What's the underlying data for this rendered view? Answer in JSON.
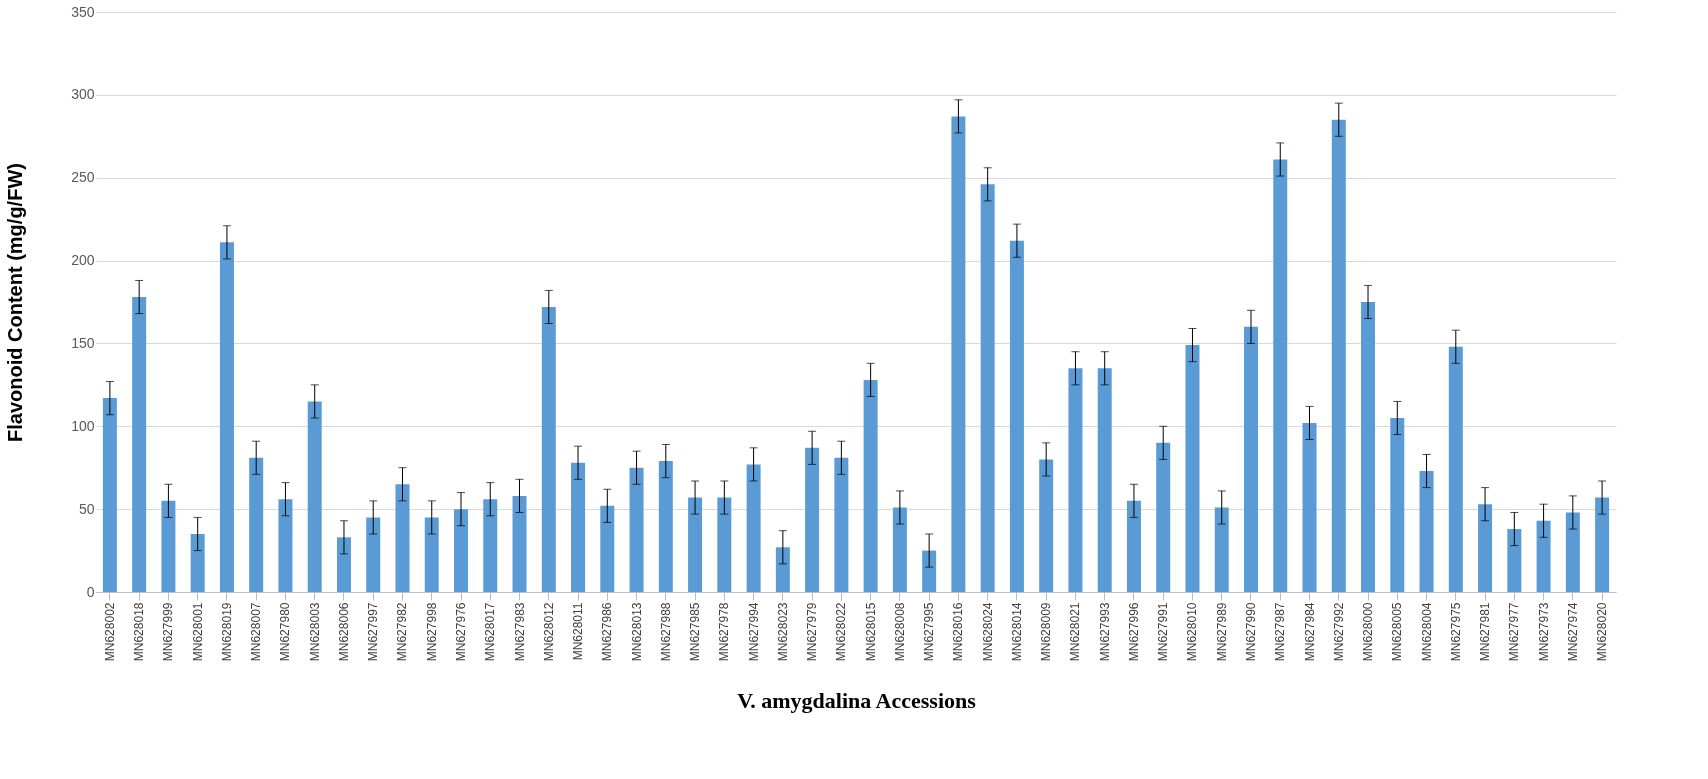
{
  "chart_data": {
    "type": "bar",
    "xlabel": "V. amygdalina Accessions",
    "ylabel": "Flavonoid Content (mg/g/FW)",
    "categories": [
      "MN628002",
      "MN628018",
      "MN627999",
      "MN628001",
      "MN628019",
      "MN628007",
      "MN627980",
      "MN628003",
      "MN628006",
      "MN627997",
      "MN627982",
      "MN627998",
      "MN627976",
      "MN628017",
      "MN627983",
      "MN628012",
      "MN628011",
      "MN627986",
      "MN628013",
      "MN627988",
      "MN627985",
      "MN627978",
      "MN627994",
      "MN628023",
      "MN627979",
      "MN628022",
      "MN628015",
      "MN628008",
      "MN627995",
      "MN628016",
      "MN628024",
      "MN628014",
      "MN628009",
      "MN628021",
      "MN627993",
      "MN627996",
      "MN627991",
      "MN628010",
      "MN627989",
      "MN627990",
      "MN627987",
      "MN627984",
      "MN627992",
      "MN628000",
      "MN628005",
      "MN628004",
      "MN627975",
      "MN627981",
      "MN627977",
      "MN627973",
      "MN627974",
      "MN628020"
    ],
    "values": [
      117,
      178,
      55,
      35,
      211,
      81,
      56,
      115,
      33,
      45,
      65,
      45,
      50,
      56,
      58,
      172,
      78,
      52,
      75,
      79,
      57,
      57,
      77,
      27,
      87,
      81,
      128,
      51,
      25,
      287,
      246,
      212,
      80,
      135,
      135,
      55,
      90,
      149,
      51,
      160,
      261,
      102,
      285,
      175,
      105,
      73,
      148,
      53,
      38,
      43,
      48,
      57
    ],
    "errors": [
      10,
      10,
      10,
      10,
      10,
      10,
      10,
      10,
      10,
      10,
      10,
      10,
      10,
      10,
      10,
      10,
      10,
      10,
      10,
      10,
      10,
      10,
      10,
      10,
      10,
      10,
      10,
      10,
      10,
      10,
      10,
      10,
      10,
      10,
      10,
      10,
      10,
      10,
      10,
      10,
      10,
      10,
      10,
      10,
      10,
      10,
      10,
      10,
      10,
      10,
      10,
      10
    ],
    "color": "#5b9bd5",
    "ylim": [
      0,
      350
    ],
    "yticks": [
      0,
      50,
      100,
      150,
      200,
      250,
      300,
      350
    ],
    "grid": "y"
  }
}
